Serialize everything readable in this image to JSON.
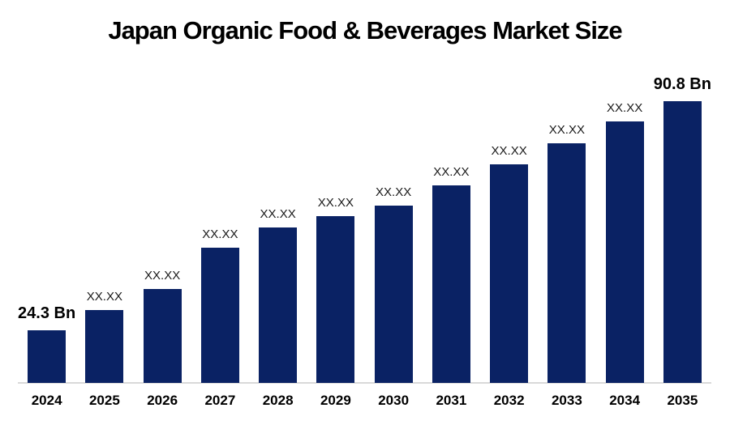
{
  "chart_data": {
    "type": "bar",
    "title": "Japan Organic Food & Beverages Market Size",
    "unit": "Bn",
    "categories": [
      "2024",
      "2025",
      "2026",
      "2027",
      "2028",
      "2029",
      "2030",
      "2031",
      "2032",
      "2033",
      "2034",
      "2035"
    ],
    "values": [
      24.3,
      30.2,
      36.4,
      48.3,
      54.1,
      57.4,
      60.5,
      66.4,
      72.5,
      78.6,
      84.9,
      90.8
    ],
    "point_labels": [
      "24.3 Bn",
      "XX.XX",
      "XX.XX",
      "XX.XX",
      "XX.XX",
      "XX.XX",
      "XX.XX",
      "XX.XX",
      "XX.XX",
      "XX.XX",
      "XX.XX",
      "90.8 Bn"
    ],
    "bold_labels": [
      true,
      false,
      false,
      false,
      false,
      false,
      false,
      false,
      false,
      false,
      false,
      true
    ],
    "first_value_label": "24.3 Bn",
    "last_value_label": "90.8 Bn",
    "masked_value_label": "XX.XX",
    "bar_color": "#0A2264",
    "axis_line_color": "#D9D9D9",
    "grid": false,
    "legend": false,
    "y_axis_visible": false,
    "xlabel": "",
    "ylabel": ""
  }
}
